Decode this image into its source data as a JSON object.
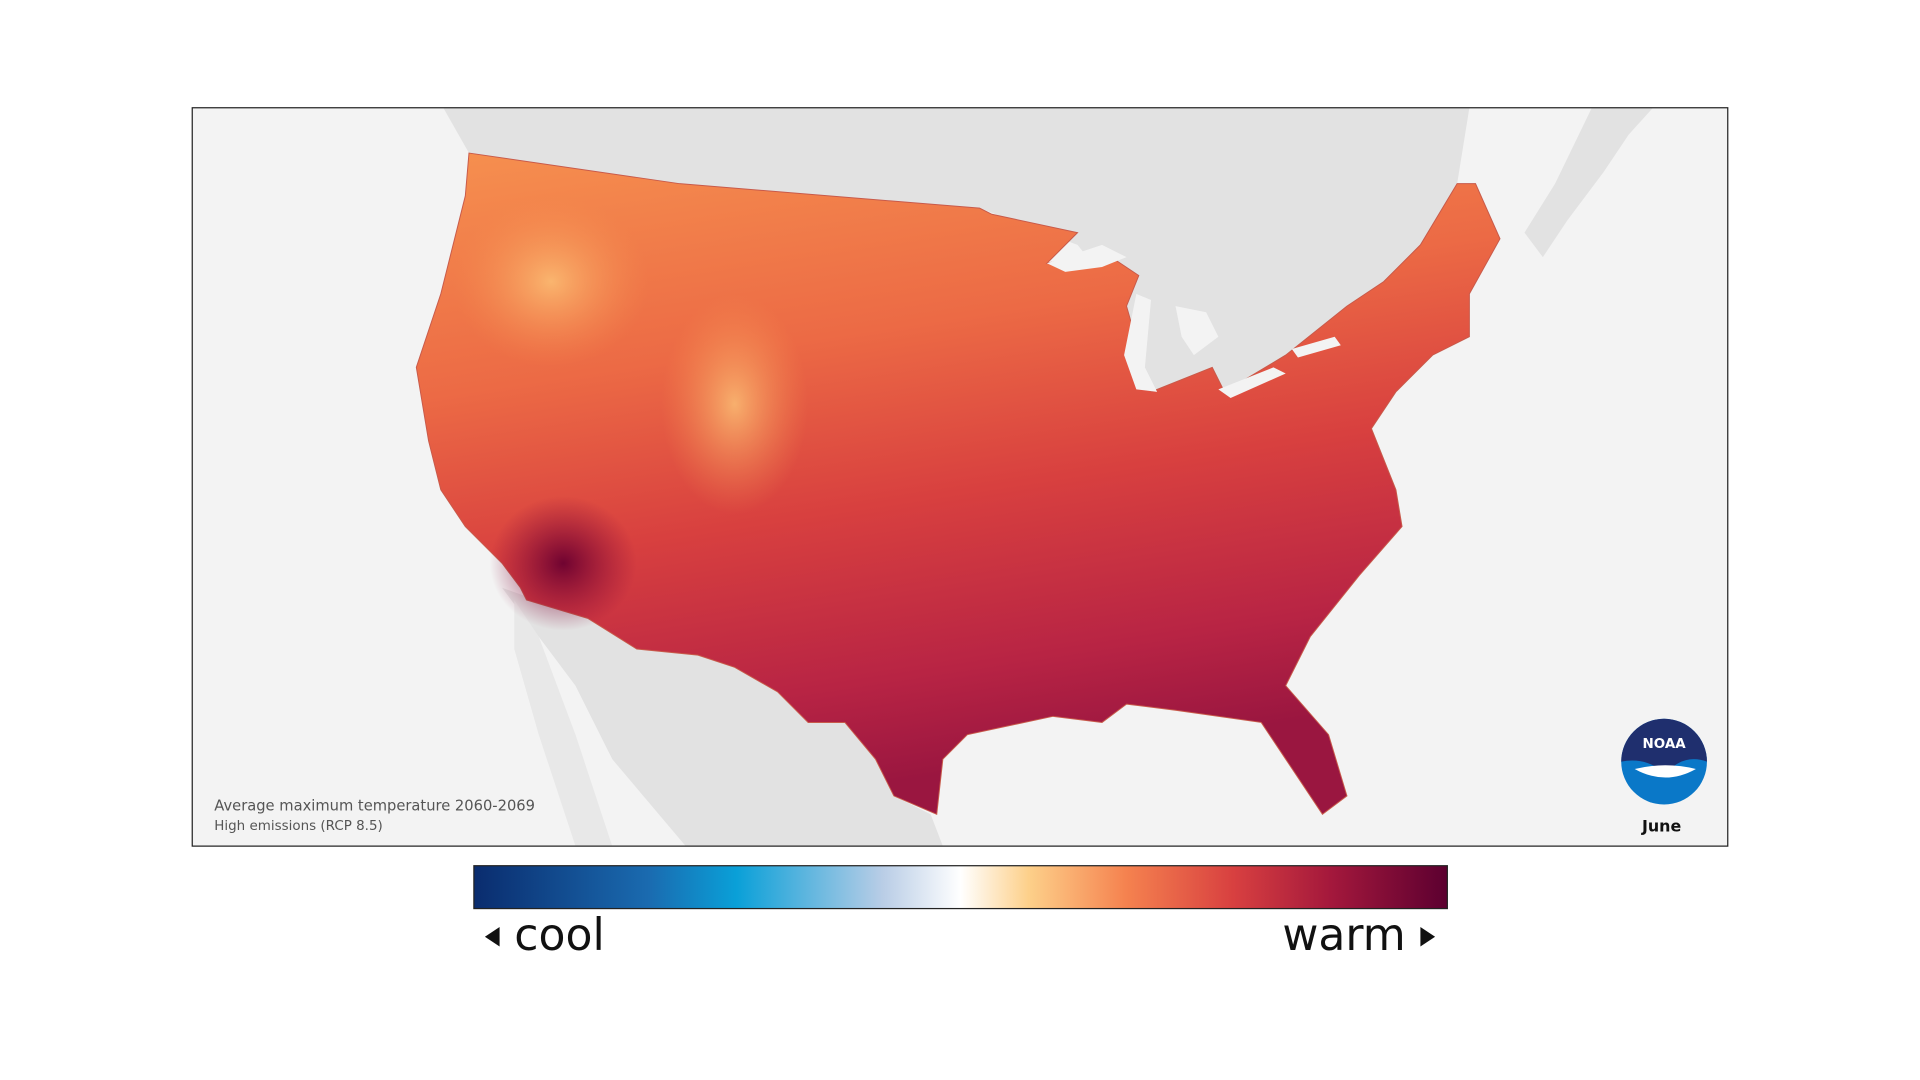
{
  "map": {
    "caption": "Average maximum temperature 2060-2069",
    "subcaption": "High emissions (RCP 8.5)",
    "month": "June",
    "logo": "NOAA"
  },
  "legend": {
    "low_label": "cool",
    "high_label": "warm"
  }
}
